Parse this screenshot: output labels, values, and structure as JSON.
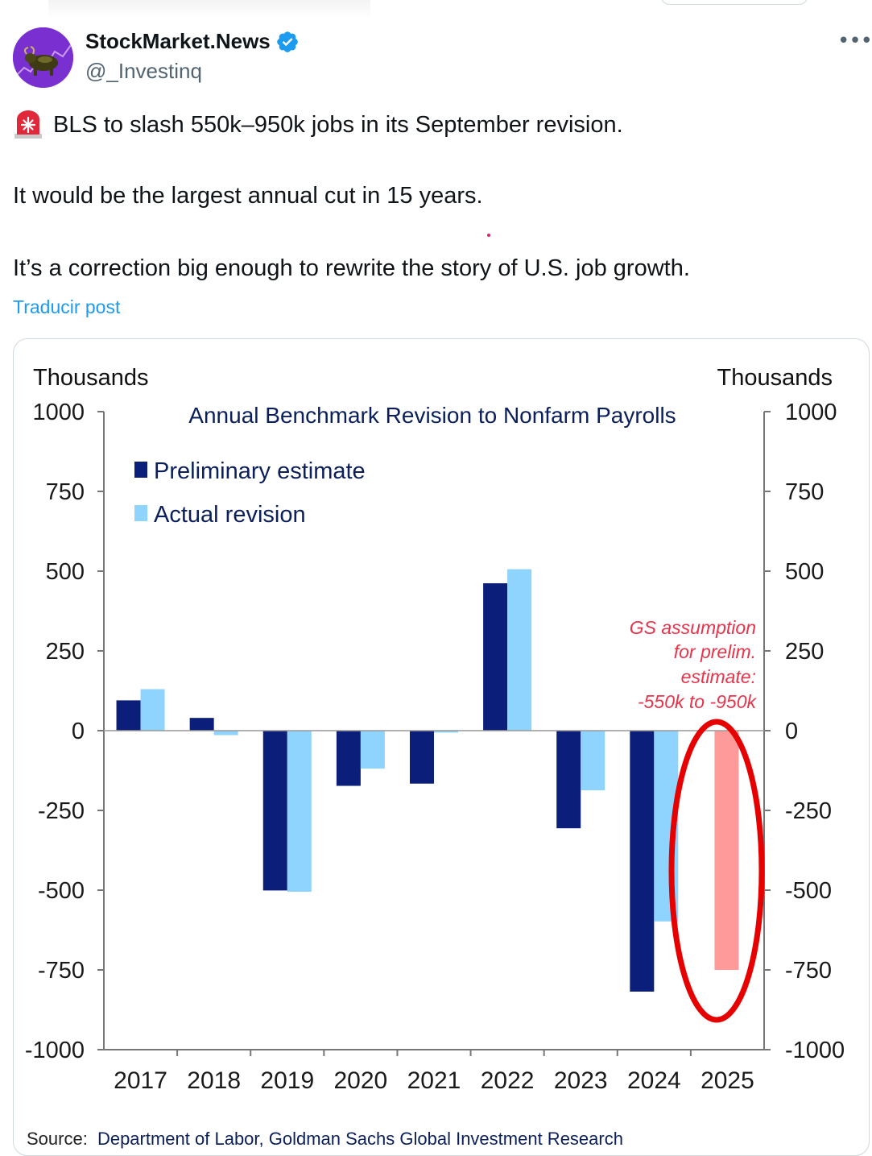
{
  "author": {
    "display_name": "StockMarket.News",
    "handle": "@_Investinq",
    "verified": true,
    "avatar": "bull-statue-avatar"
  },
  "post": {
    "line1_emoji": "rotating-light-icon",
    "line1": "BLS to slash 550k–950k jobs in its September revision.",
    "line2": "It would be the largest annual cut in 15 years.",
    "line3": "It’s a correction big enough to rewrite the story of U.S. job growth.",
    "translate_label": "Traducir post"
  },
  "colors": {
    "preliminary": "#0b1f7a",
    "actual": "#8fd3ff",
    "assumption": "#ff9a9a",
    "highlight_ring": "#e60000",
    "link": "#1d9bf0"
  },
  "chart_data": {
    "type": "bar",
    "title": "Annual Benchmark Revision  to Nonfarm  Payrolls",
    "left_unit": "Thousands",
    "right_unit": "Thousands",
    "categories": [
      "2017",
      "2018",
      "2019",
      "2020",
      "2021",
      "2022",
      "2023",
      "2024",
      "2025"
    ],
    "series": [
      {
        "name": "Preliminary estimate",
        "values": [
          95,
          40,
          -501,
          -173,
          -166,
          462,
          -306,
          -818,
          null
        ]
      },
      {
        "name": "Actual revision",
        "values": [
          130,
          -14,
          -505,
          -119,
          -6,
          506,
          -187,
          -598,
          null
        ]
      }
    ],
    "assumption": {
      "category": "2025",
      "value": -750
    },
    "annotation": [
      "GS assumption",
      "for prelim.",
      "estimate:",
      "-550k to -950k"
    ],
    "ylim": [
      -1000,
      1000
    ],
    "yticks": [
      1000,
      750,
      500,
      250,
      0,
      -250,
      -500,
      -750,
      -1000
    ],
    "ytick_labels": [
      "1000",
      "750",
      "500",
      "250",
      "0",
      "-250",
      "-500",
      "-750",
      "-1000"
    ],
    "legend_position": "top-left",
    "source_prefix": "Source:",
    "source_text": "Department of Labor, Goldman Sachs Global Investment Research"
  }
}
